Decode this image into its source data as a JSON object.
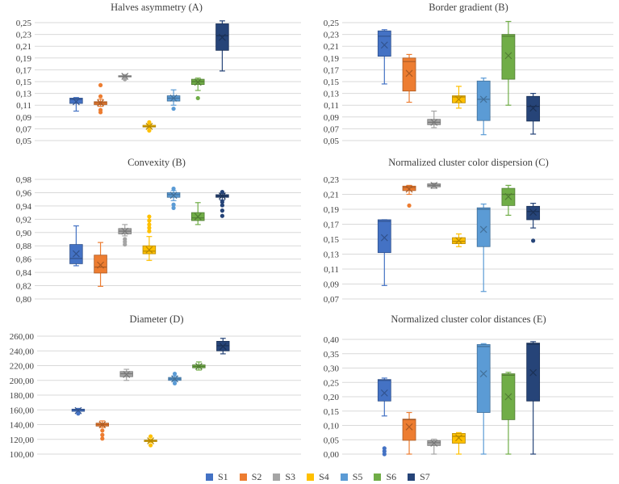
{
  "legend": [
    {
      "name": "S1",
      "color": "#4472C4"
    },
    {
      "name": "S2",
      "color": "#ED7D31"
    },
    {
      "name": "S3",
      "color": "#A5A5A5"
    },
    {
      "name": "S4",
      "color": "#FFC000"
    },
    {
      "name": "S5",
      "color": "#5B9BD5"
    },
    {
      "name": "S6",
      "color": "#70AD47"
    },
    {
      "name": "S7",
      "color": "#264478"
    }
  ],
  "chart_data": [
    {
      "type": "box",
      "title": "Halves asymmetry (A)",
      "ylim": [
        0.05,
        0.25
      ],
      "yticks": [
        "0,05",
        "0,07",
        "0,09",
        "0,11",
        "0,13",
        "0,15",
        "0,17",
        "0,19",
        "0,21",
        "0,23",
        "0,25"
      ],
      "series": [
        {
          "name": "S1",
          "min": 0.1,
          "q1": 0.113,
          "median": 0.12,
          "q3": 0.122,
          "max": 0.123,
          "mean": 0.116,
          "outliers": []
        },
        {
          "name": "S2",
          "min": 0.108,
          "q1": 0.111,
          "median": 0.114,
          "q3": 0.116,
          "max": 0.12,
          "mean": 0.114,
          "outliers": [
            0.098,
            0.102,
            0.125,
            0.144
          ]
        },
        {
          "name": "S3",
          "min": 0.157,
          "q1": 0.158,
          "median": 0.159,
          "q3": 0.16,
          "max": 0.162,
          "mean": 0.159,
          "outliers": [
            0.154
          ]
        },
        {
          "name": "S4",
          "min": 0.071,
          "q1": 0.073,
          "median": 0.074,
          "q3": 0.076,
          "max": 0.078,
          "mean": 0.074,
          "outliers": [
            0.067,
            0.081
          ]
        },
        {
          "name": "S5",
          "min": 0.11,
          "q1": 0.117,
          "median": 0.122,
          "q3": 0.126,
          "max": 0.136,
          "mean": 0.122,
          "outliers": [
            0.104
          ]
        },
        {
          "name": "S6",
          "min": 0.135,
          "q1": 0.145,
          "median": 0.15,
          "q3": 0.154,
          "max": 0.156,
          "mean": 0.149,
          "outliers": [
            0.122
          ]
        },
        {
          "name": "S7",
          "min": 0.168,
          "q1": 0.203,
          "median": 0.228,
          "q3": 0.248,
          "max": 0.253,
          "mean": 0.225,
          "outliers": []
        }
      ]
    },
    {
      "type": "box",
      "title": "Border gradient (B)",
      "ylim": [
        0.05,
        0.25
      ],
      "yticks": [
        "0,05",
        "0,07",
        "0,09",
        "0,11",
        "0,13",
        "0,15",
        "0,17",
        "0,19",
        "0,21",
        "0,23",
        "0,25"
      ],
      "series": [
        {
          "name": "S1",
          "min": 0.146,
          "q1": 0.193,
          "median": 0.227,
          "q3": 0.236,
          "max": 0.238,
          "mean": 0.212,
          "outliers": []
        },
        {
          "name": "S2",
          "min": 0.115,
          "q1": 0.134,
          "median": 0.184,
          "q3": 0.19,
          "max": 0.196,
          "mean": 0.164,
          "outliers": []
        },
        {
          "name": "S3",
          "min": 0.072,
          "q1": 0.077,
          "median": 0.081,
          "q3": 0.086,
          "max": 0.1,
          "mean": 0.081,
          "outliers": []
        },
        {
          "name": "S4",
          "min": 0.105,
          "q1": 0.114,
          "median": 0.124,
          "q3": 0.126,
          "max": 0.142,
          "mean": 0.12,
          "outliers": []
        },
        {
          "name": "S5",
          "min": 0.06,
          "q1": 0.084,
          "median": 0.12,
          "q3": 0.151,
          "max": 0.156,
          "mean": 0.12,
          "outliers": []
        },
        {
          "name": "S6",
          "min": 0.11,
          "q1": 0.154,
          "median": 0.227,
          "q3": 0.23,
          "max": 0.252,
          "mean": 0.194,
          "outliers": []
        },
        {
          "name": "S7",
          "min": 0.061,
          "q1": 0.083,
          "median": 0.108,
          "q3": 0.125,
          "max": 0.13,
          "mean": 0.105,
          "outliers": []
        }
      ]
    },
    {
      "type": "box",
      "title": "Convexity (B)",
      "ylim": [
        0.8,
        0.98
      ],
      "yticks": [
        "0,80",
        "0,82",
        "0,84",
        "0,86",
        "0,88",
        "0,90",
        "0,92",
        "0,94",
        "0,96",
        "0,98"
      ],
      "series": [
        {
          "name": "S1",
          "min": 0.85,
          "q1": 0.853,
          "median": 0.861,
          "q3": 0.882,
          "max": 0.91,
          "mean": 0.868,
          "outliers": []
        },
        {
          "name": "S2",
          "min": 0.819,
          "q1": 0.839,
          "median": 0.848,
          "q3": 0.866,
          "max": 0.885,
          "mean": 0.851,
          "outliers": []
        },
        {
          "name": "S3",
          "min": 0.895,
          "q1": 0.898,
          "median": 0.902,
          "q3": 0.906,
          "max": 0.912,
          "mean": 0.902,
          "outliers": [
            0.882,
            0.886,
            0.89
          ]
        },
        {
          "name": "S4",
          "min": 0.858,
          "q1": 0.868,
          "median": 0.872,
          "q3": 0.88,
          "max": 0.894,
          "mean": 0.874,
          "outliers": [
            0.902,
            0.907,
            0.912,
            0.918,
            0.924
          ]
        },
        {
          "name": "S5",
          "min": 0.948,
          "q1": 0.953,
          "median": 0.957,
          "q3": 0.96,
          "max": 0.963,
          "mean": 0.956,
          "outliers": [
            0.937,
            0.942,
            0.966
          ]
        },
        {
          "name": "S6",
          "min": 0.912,
          "q1": 0.918,
          "median": 0.922,
          "q3": 0.93,
          "max": 0.945,
          "mean": 0.924,
          "outliers": []
        },
        {
          "name": "S7",
          "min": 0.949,
          "q1": 0.953,
          "median": 0.955,
          "q3": 0.957,
          "max": 0.959,
          "mean": 0.955,
          "outliers": [
            0.925,
            0.933,
            0.941,
            0.946,
            0.961
          ]
        }
      ]
    },
    {
      "type": "box",
      "title": "Normalized cluster color dispersion (C)",
      "ylim": [
        0.07,
        0.23
      ],
      "yticks": [
        "0,07",
        "0,09",
        "0,11",
        "0,13",
        "0,15",
        "0,17",
        "0,19",
        "0,21",
        "0,23"
      ],
      "series": [
        {
          "name": "S1",
          "min": 0.088,
          "q1": 0.132,
          "median": 0.174,
          "q3": 0.176,
          "max": 0.176,
          "mean": 0.152,
          "outliers": []
        },
        {
          "name": "S2",
          "min": 0.21,
          "q1": 0.215,
          "median": 0.219,
          "q3": 0.221,
          "max": 0.222,
          "mean": 0.217,
          "outliers": [
            0.195
          ]
        },
        {
          "name": "S3",
          "min": 0.218,
          "q1": 0.22,
          "median": 0.222,
          "q3": 0.224,
          "max": 0.225,
          "mean": 0.222,
          "outliers": []
        },
        {
          "name": "S4",
          "min": 0.14,
          "q1": 0.144,
          "median": 0.147,
          "q3": 0.152,
          "max": 0.157,
          "mean": 0.148,
          "outliers": []
        },
        {
          "name": "S5",
          "min": 0.08,
          "q1": 0.14,
          "median": 0.19,
          "q3": 0.192,
          "max": 0.197,
          "mean": 0.163,
          "outliers": []
        },
        {
          "name": "S6",
          "min": 0.182,
          "q1": 0.195,
          "median": 0.21,
          "q3": 0.218,
          "max": 0.222,
          "mean": 0.207,
          "outliers": []
        },
        {
          "name": "S7",
          "min": 0.165,
          "q1": 0.176,
          "median": 0.187,
          "q3": 0.194,
          "max": 0.198,
          "mean": 0.186,
          "outliers": [
            0.148
          ]
        }
      ]
    },
    {
      "type": "box",
      "title": "Diameter (D)",
      "ylim": [
        100,
        260
      ],
      "yticks": [
        "100,00",
        "120,00",
        "140,00",
        "160,00",
        "180,00",
        "200,00",
        "220,00",
        "240,00",
        "260,00"
      ],
      "series": [
        {
          "name": "S1",
          "min": 156,
          "q1": 158,
          "median": 160,
          "q3": 161,
          "max": 162,
          "mean": 159,
          "outliers": [
            155
          ]
        },
        {
          "name": "S2",
          "min": 136,
          "q1": 138,
          "median": 140,
          "q3": 142,
          "max": 145,
          "mean": 140,
          "outliers": [
            121,
            126,
            132
          ]
        },
        {
          "name": "S3",
          "min": 200,
          "q1": 205,
          "median": 209,
          "q3": 212,
          "max": 215,
          "mean": 208,
          "outliers": []
        },
        {
          "name": "S4",
          "min": 116,
          "q1": 117,
          "median": 118,
          "q3": 119,
          "max": 120,
          "mean": 118,
          "outliers": [
            112,
            124
          ]
        },
        {
          "name": "S5",
          "min": 199,
          "q1": 200,
          "median": 202,
          "q3": 204,
          "max": 206,
          "mean": 202,
          "outliers": [
            196,
            209
          ]
        },
        {
          "name": "S6",
          "min": 214,
          "q1": 217,
          "median": 219,
          "q3": 221,
          "max": 225,
          "mean": 219,
          "outliers": []
        },
        {
          "name": "S7",
          "min": 236,
          "q1": 240,
          "median": 247,
          "q3": 253,
          "max": 257,
          "mean": 246,
          "outliers": []
        }
      ]
    },
    {
      "type": "box",
      "title": "Normalized cluster color distances (E)",
      "ylim": [
        0.0,
        0.4
      ],
      "yticks": [
        "0,00",
        "0,05",
        "0,10",
        "0,15",
        "0,20",
        "0,25",
        "0,30",
        "0,35",
        "0,40"
      ],
      "series": [
        {
          "name": "S1",
          "min": 0.133,
          "q1": 0.185,
          "median": 0.257,
          "q3": 0.26,
          "max": 0.265,
          "mean": 0.213,
          "outliers": [
            0.0,
            0.01,
            0.02
          ]
        },
        {
          "name": "S2",
          "min": 0.0,
          "q1": 0.048,
          "median": 0.12,
          "q3": 0.122,
          "max": 0.145,
          "mean": 0.095,
          "outliers": []
        },
        {
          "name": "S3",
          "min": 0.0,
          "q1": 0.03,
          "median": 0.04,
          "q3": 0.047,
          "max": 0.052,
          "mean": 0.038,
          "outliers": []
        },
        {
          "name": "S4",
          "min": 0.0,
          "q1": 0.038,
          "median": 0.062,
          "q3": 0.072,
          "max": 0.075,
          "mean": 0.057,
          "outliers": []
        },
        {
          "name": "S5",
          "min": 0.0,
          "q1": 0.145,
          "median": 0.375,
          "q3": 0.382,
          "max": 0.385,
          "mean": 0.28,
          "outliers": []
        },
        {
          "name": "S6",
          "min": 0.0,
          "q1": 0.12,
          "median": 0.275,
          "q3": 0.28,
          "max": 0.285,
          "mean": 0.2,
          "outliers": []
        },
        {
          "name": "S7",
          "min": 0.0,
          "q1": 0.185,
          "median": 0.383,
          "q3": 0.387,
          "max": 0.392,
          "mean": 0.284,
          "outliers": []
        }
      ]
    }
  ]
}
